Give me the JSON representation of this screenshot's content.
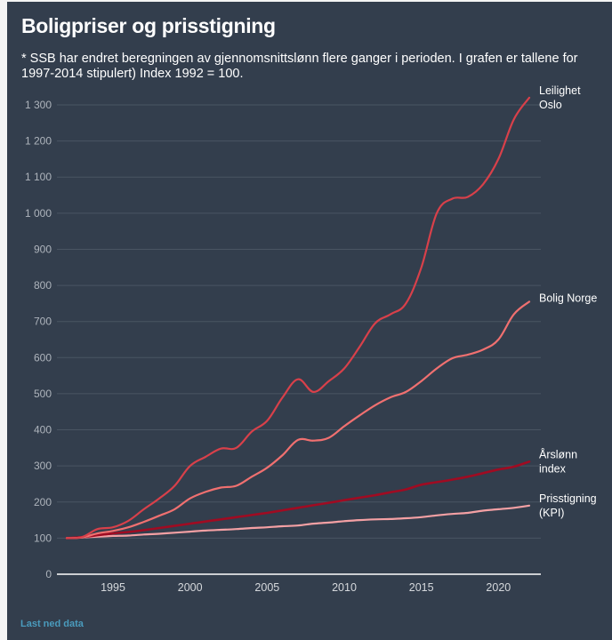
{
  "title": "Boligpriser og prisstigning",
  "subtitle": "* SSB har endret beregningen av gjennomsnittslønn flere ganger i perioden. I grafen er tallene for 1997-2014 stipulert) Index 1992 = 100.",
  "download_link": "Last ned data",
  "chart_data": {
    "type": "line",
    "title": "Boligpriser og prisstigning",
    "xlabel": "",
    "ylabel": "",
    "x": [
      1992,
      1993,
      1994,
      1995,
      1996,
      1997,
      1998,
      1999,
      2000,
      2001,
      2002,
      2003,
      2004,
      2005,
      2006,
      2007,
      2008,
      2009,
      2010,
      2011,
      2012,
      2013,
      2014,
      2015,
      2016,
      2017,
      2018,
      2019,
      2020,
      2021,
      2022
    ],
    "xlim": [
      1992,
      2022
    ],
    "ylim": [
      0,
      1300
    ],
    "y_ticks": [
      0,
      100,
      200,
      300,
      400,
      500,
      600,
      700,
      800,
      900,
      1000,
      1100,
      1200,
      1300
    ],
    "y_tick_labels": [
      "0",
      "100",
      "200",
      "300",
      "400",
      "500",
      "600",
      "700",
      "800",
      "900",
      "1 000",
      "1 100",
      "1 200",
      "1 300"
    ],
    "x_ticks": [
      1995,
      2000,
      2005,
      2010,
      2015,
      2020
    ],
    "x_tick_labels": [
      "1995",
      "2000",
      "2005",
      "2010",
      "2015",
      "2020"
    ],
    "grid": true,
    "legend": "inline-right",
    "series": [
      {
        "name": "Leilighet Oslo",
        "label_lines": [
          "Leilighet",
          "Oslo"
        ],
        "color": "#d8404a",
        "values": [
          100,
          103,
          125,
          130,
          148,
          180,
          210,
          245,
          300,
          325,
          348,
          350,
          395,
          425,
          490,
          540,
          505,
          535,
          570,
          630,
          695,
          720,
          750,
          850,
          1000,
          1040,
          1045,
          1080,
          1150,
          1260,
          1320
        ]
      },
      {
        "name": "Bolig Norge",
        "label_lines": [
          "Bolig Norge"
        ],
        "color": "#f07070",
        "values": [
          100,
          102,
          113,
          120,
          130,
          145,
          162,
          180,
          210,
          228,
          240,
          245,
          270,
          295,
          330,
          372,
          370,
          378,
          410,
          440,
          468,
          490,
          505,
          535,
          570,
          598,
          608,
          622,
          650,
          720,
          755
        ]
      },
      {
        "name": "Årslønn index",
        "label_lines": [
          "Årslønn",
          "index"
        ],
        "color": "#a00b22",
        "values": [
          100,
          103,
          108,
          113,
          117,
          122,
          128,
          134,
          140,
          146,
          152,
          158,
          164,
          170,
          177,
          184,
          191,
          198,
          205,
          212,
          219,
          227,
          235,
          248,
          255,
          262,
          270,
          280,
          290,
          298,
          312
        ]
      },
      {
        "name": "Prisstigning (KPI)",
        "label_lines": [
          "Prisstigning",
          "(KPI)"
        ],
        "color": "#f4a0a4",
        "values": [
          100,
          102,
          104,
          106,
          107,
          110,
          112,
          115,
          118,
          121,
          123,
          125,
          128,
          130,
          133,
          135,
          140,
          143,
          147,
          150,
          152,
          153,
          155,
          158,
          163,
          167,
          170,
          176,
          180,
          184,
          190
        ]
      }
    ]
  }
}
